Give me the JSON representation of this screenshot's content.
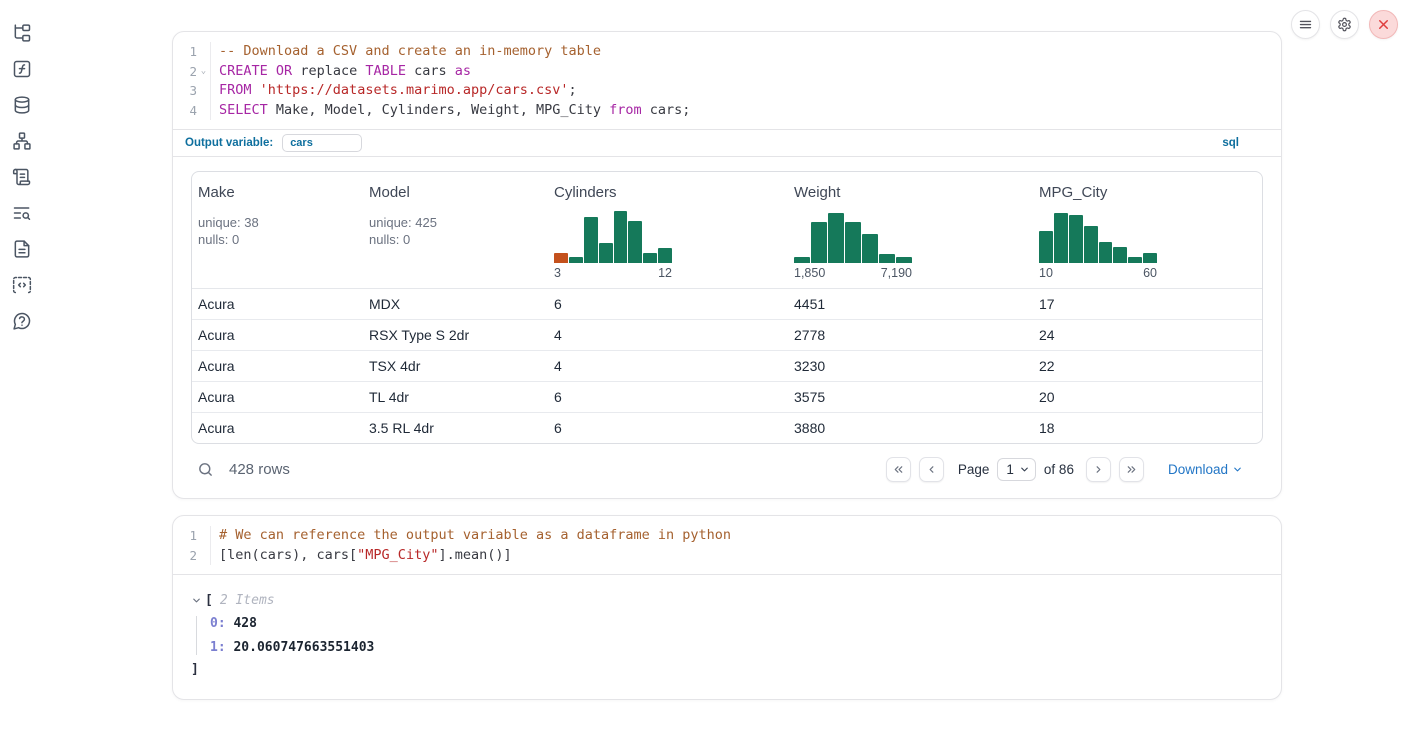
{
  "colors": {
    "accent_blue": "#0e6f9e",
    "link_blue": "#2276c6",
    "hist_green": "#15795a",
    "hist_orange": "#c4511d"
  },
  "sidebar": {
    "icons": [
      "file-tree",
      "function-square",
      "database",
      "dependency-graph",
      "scroll",
      "list-search",
      "document",
      "code-snippet",
      "help-chat"
    ]
  },
  "topbar": {
    "buttons": [
      "menu",
      "settings",
      "close"
    ]
  },
  "cells": [
    {
      "language": "sql",
      "code_lines": [
        {
          "number": "1",
          "fold": false,
          "tokens": [
            {
              "t": "-- Download a CSV and create an in-memory table",
              "c": "comment"
            }
          ]
        },
        {
          "number": "2",
          "fold": true,
          "tokens": [
            {
              "t": "CREATE",
              "c": "kw"
            },
            {
              "t": " ",
              "c": "plain"
            },
            {
              "t": "OR",
              "c": "kw"
            },
            {
              "t": " replace ",
              "c": "plain"
            },
            {
              "t": "TABLE",
              "c": "kw"
            },
            {
              "t": " cars ",
              "c": "plain"
            },
            {
              "t": "as",
              "c": "kw"
            }
          ]
        },
        {
          "number": "3",
          "fold": false,
          "tokens": [
            {
              "t": "FROM",
              "c": "kw"
            },
            {
              "t": " ",
              "c": "plain"
            },
            {
              "t": "'https://datasets.marimo.app/cars.csv'",
              "c": "str"
            },
            {
              "t": ";",
              "c": "plain"
            }
          ]
        },
        {
          "number": "4",
          "fold": false,
          "tokens": [
            {
              "t": "SELECT",
              "c": "kw"
            },
            {
              "t": " Make, Model, Cylinders, Weight, MPG_City ",
              "c": "plain"
            },
            {
              "t": "from",
              "c": "kw"
            },
            {
              "t": " cars;",
              "c": "plain"
            }
          ]
        }
      ],
      "output_variable_label": "Output variable:",
      "output_variable_value": "cars",
      "language_badge": "sql",
      "table": {
        "columns": [
          {
            "name": "Make",
            "stats": [
              "unique: 38",
              "nulls: 0"
            ]
          },
          {
            "name": "Model",
            "stats": [
              "unique: 425",
              "nulls: 0"
            ]
          },
          {
            "name": "Cylinders",
            "histogram": {
              "min_label": "3",
              "max_label": "12",
              "bars": [
                {
                  "h": 0.2,
                  "color": "#c4511d"
                },
                {
                  "h": 0.12
                },
                {
                  "h": 0.88
                },
                {
                  "h": 0.38
                },
                {
                  "h": 1.0
                },
                {
                  "h": 0.8
                },
                {
                  "h": 0.2
                },
                {
                  "h": 0.28
                }
              ]
            }
          },
          {
            "name": "Weight",
            "histogram": {
              "min_label": "1,850",
              "max_label": "7,190",
              "bars": [
                {
                  "h": 0.12
                },
                {
                  "h": 0.78
                },
                {
                  "h": 0.97
                },
                {
                  "h": 0.78
                },
                {
                  "h": 0.55
                },
                {
                  "h": 0.18
                },
                {
                  "h": 0.12
                }
              ]
            }
          },
          {
            "name": "MPG_City",
            "histogram": {
              "min_label": "10",
              "max_label": "60",
              "bars": [
                {
                  "h": 0.62
                },
                {
                  "h": 0.97
                },
                {
                  "h": 0.92
                },
                {
                  "h": 0.72
                },
                {
                  "h": 0.4
                },
                {
                  "h": 0.3
                },
                {
                  "h": 0.12
                },
                {
                  "h": 0.2
                }
              ]
            }
          }
        ],
        "rows": [
          [
            "Acura",
            "MDX",
            "6",
            "4451",
            "17"
          ],
          [
            "Acura",
            "RSX Type S 2dr",
            "4",
            "2778",
            "24"
          ],
          [
            "Acura",
            "TSX 4dr",
            "4",
            "3230",
            "22"
          ],
          [
            "Acura",
            "TL 4dr",
            "6",
            "3575",
            "20"
          ],
          [
            "Acura",
            "3.5 RL 4dr",
            "6",
            "3880",
            "18"
          ]
        ],
        "footer": {
          "row_count": "428 rows",
          "page_label": "Page",
          "page_value": "1",
          "of_label": "of 86",
          "download_label": "Download"
        }
      }
    },
    {
      "language": "python",
      "code_lines": [
        {
          "number": "1",
          "fold": false,
          "tokens": [
            {
              "t": "# We can reference the output variable as a dataframe in python",
              "c": "comment"
            }
          ]
        },
        {
          "number": "2",
          "fold": false,
          "tokens": [
            {
              "t": "[len(cars), cars[",
              "c": "plain"
            },
            {
              "t": "\"MPG_City\"",
              "c": "str"
            },
            {
              "t": "].mean()]",
              "c": "plain"
            }
          ]
        }
      ],
      "output_tree": {
        "open_bracket": "[",
        "items_label": "2 Items",
        "items": [
          {
            "key": "0:",
            "value": "428"
          },
          {
            "key": "1:",
            "value": "20.060747663551403"
          }
        ],
        "close_bracket": "]"
      }
    }
  ]
}
